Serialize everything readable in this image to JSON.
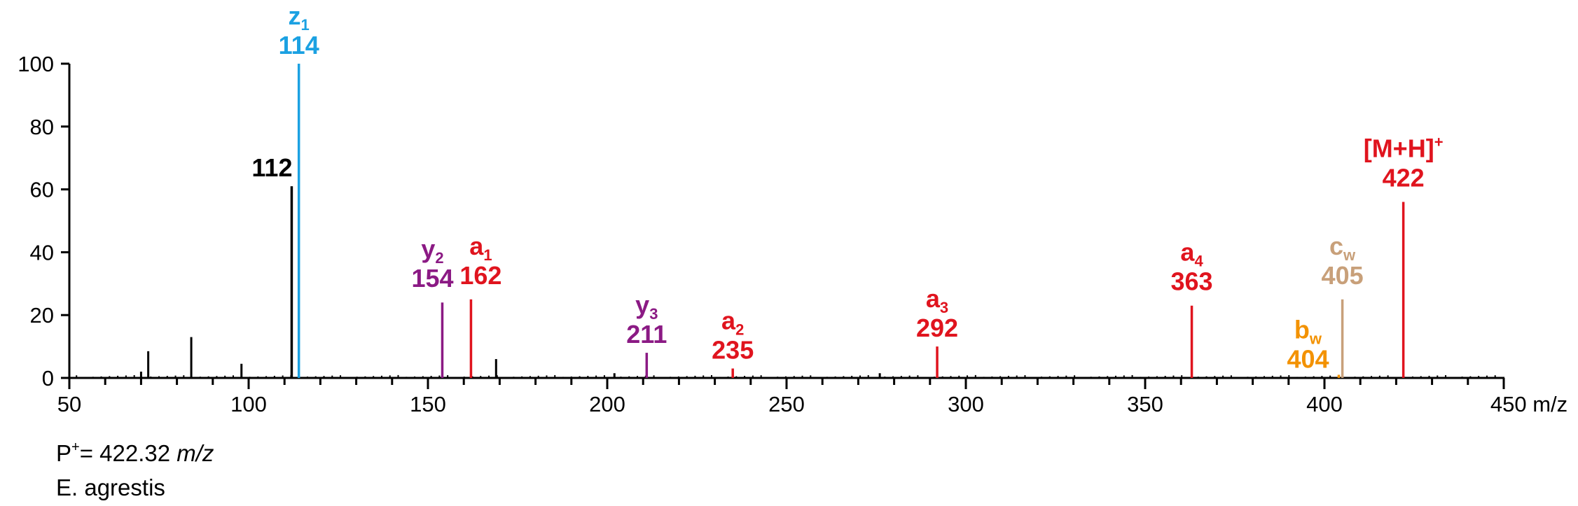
{
  "chart_data": {
    "type": "bar",
    "xlim": [
      50,
      450
    ],
    "ylim": [
      0,
      100
    ],
    "x_ticks": [
      50,
      100,
      150,
      200,
      250,
      300,
      350,
      400,
      450
    ],
    "y_ticks": [
      0,
      20,
      40,
      60,
      80,
      100
    ],
    "x_unit": "m/z",
    "grid": false,
    "peaks": [
      {
        "mz": 112,
        "intensity": 61,
        "color": "#000000",
        "ion": "",
        "sub": "",
        "label": "112"
      },
      {
        "mz": 114,
        "intensity": 100,
        "color": "#1ba1e2",
        "ion": "z",
        "sub": "1",
        "label": "114"
      },
      {
        "mz": 154,
        "intensity": 24,
        "color": "#8b1a84",
        "ion": "y",
        "sub": "2",
        "label": "154"
      },
      {
        "mz": 162,
        "intensity": 25,
        "color": "#e0141e",
        "ion": "a",
        "sub": "1",
        "label": "162"
      },
      {
        "mz": 211,
        "intensity": 8,
        "color": "#8b1a84",
        "ion": "y",
        "sub": "3",
        "label": "211"
      },
      {
        "mz": 235,
        "intensity": 3,
        "color": "#e0141e",
        "ion": "a",
        "sub": "2",
        "label": "235"
      },
      {
        "mz": 292,
        "intensity": 10,
        "color": "#e0141e",
        "ion": "a",
        "sub": "3",
        "label": "292"
      },
      {
        "mz": 363,
        "intensity": 23,
        "color": "#e0141e",
        "ion": "a",
        "sub": "4",
        "label": "363"
      },
      {
        "mz": 404,
        "intensity": 1,
        "color": "#f39200",
        "ion": "b",
        "sub": "w",
        "label": "404"
      },
      {
        "mz": 405,
        "intensity": 25,
        "color": "#c8a07a",
        "ion": "c",
        "sub": "w",
        "label": "405"
      },
      {
        "mz": 422,
        "intensity": 56,
        "color": "#e0141e",
        "ion": "[M+H]",
        "sup": "+",
        "label": "422"
      }
    ],
    "minor_peaks": [
      {
        "mz": 70,
        "intensity": 2
      },
      {
        "mz": 72,
        "intensity": 8.5
      },
      {
        "mz": 84,
        "intensity": 13
      },
      {
        "mz": 98,
        "intensity": 4.5
      },
      {
        "mz": 169,
        "intensity": 6
      },
      {
        "mz": 202,
        "intensity": 1.5
      },
      {
        "mz": 276,
        "intensity": 1.5
      }
    ]
  },
  "captions": {
    "precursor_prefix": "P",
    "precursor_sup": "+",
    "precursor_value": "= 422.32 ",
    "precursor_unit": "m/z",
    "species": "E. agrestis"
  }
}
